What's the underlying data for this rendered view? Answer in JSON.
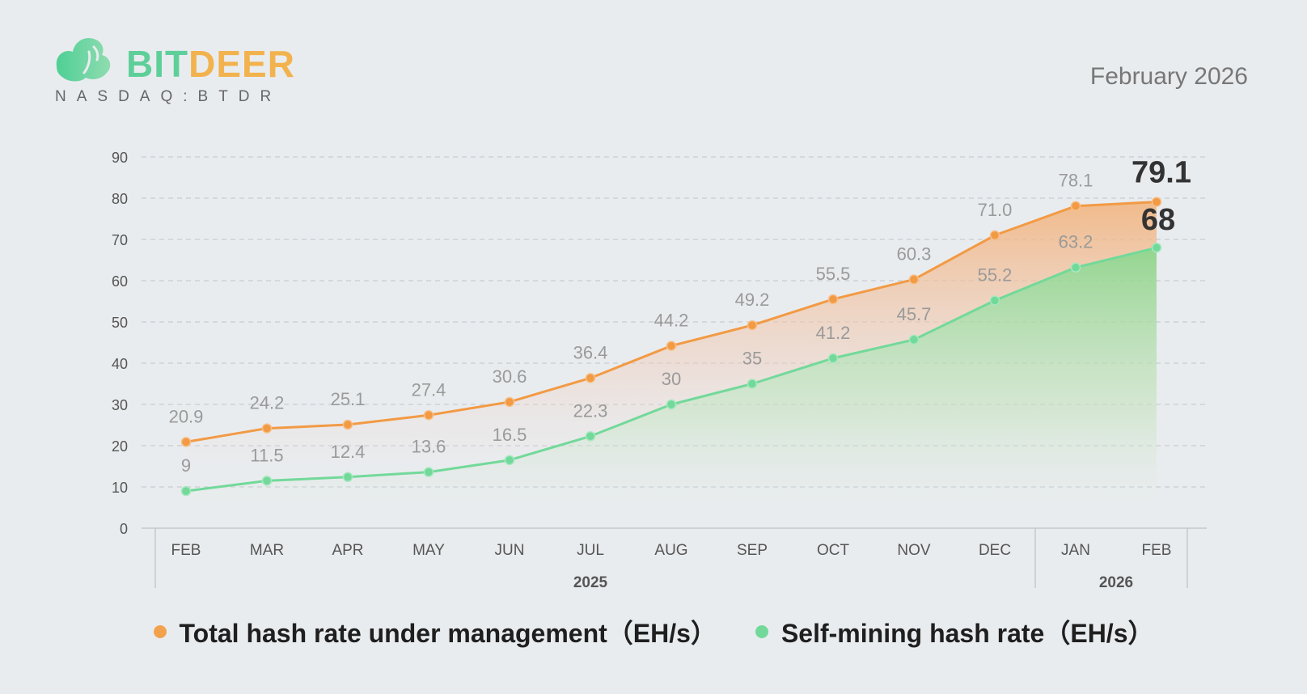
{
  "brand": {
    "name_part1": "BIT",
    "name_part2": "DEER",
    "ticker": "NASDAQ:BTDR"
  },
  "period": "February 2026",
  "colors": {
    "total": "#f29a44",
    "self": "#72d99a",
    "grid": "#c8ccd0",
    "axis_text": "#555555",
    "label_text": "#9a9a9a",
    "highlight_text": "#333333"
  },
  "chart_data": {
    "type": "area",
    "title": "",
    "xlabel": "",
    "ylabel": "",
    "ylim": [
      0,
      90
    ],
    "yticks": [
      0,
      10,
      20,
      30,
      40,
      50,
      60,
      70,
      80,
      90
    ],
    "grid": true,
    "categories": [
      "FEB",
      "MAR",
      "APR",
      "MAY",
      "JUN",
      "JUL",
      "AUG",
      "SEP",
      "OCT",
      "NOV",
      "DEC",
      "JAN",
      "FEB"
    ],
    "year_groups": [
      {
        "label": "2025",
        "start": 0,
        "end": 10
      },
      {
        "label": "2026",
        "start": 11,
        "end": 12
      }
    ],
    "series": [
      {
        "name": "Total hash rate under management（EH/s）",
        "values": [
          20.9,
          24.2,
          25.1,
          27.4,
          30.6,
          36.4,
          44.2,
          49.2,
          55.5,
          60.3,
          71.0,
          78.1,
          79.1
        ],
        "labels": [
          "20.9",
          "24.2",
          "25.1",
          "27.4",
          "30.6",
          "36.4",
          "44.2",
          "49.2",
          "55.5",
          "60.3",
          "71.0",
          "78.1",
          "79.1"
        ]
      },
      {
        "name": "Self-mining hash rate（EH/s）",
        "values": [
          9,
          11.5,
          12.4,
          13.6,
          16.5,
          22.3,
          30,
          35,
          41.2,
          45.7,
          55.2,
          63.2,
          68
        ],
        "labels": [
          "9",
          "11.5",
          "12.4",
          "13.6",
          "16.5",
          "22.3",
          "30",
          "35",
          "41.2",
          "45.7",
          "55.2",
          "63.2",
          "68"
        ]
      }
    ],
    "legend_position": "bottom-center"
  }
}
